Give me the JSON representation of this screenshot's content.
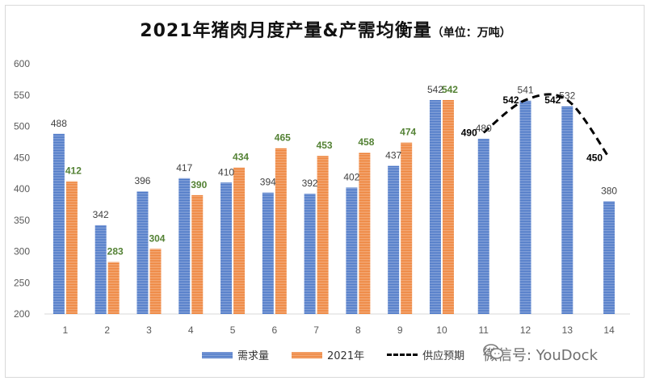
{
  "title": "2021年猪肉月度产量&产需均衡量",
  "title_unit": "（单位：万吨）",
  "legend": {
    "demand": "需求量",
    "production": "2021年",
    "forecast": "供应预期"
  },
  "watermark": "微信号: YouDock",
  "colors": {
    "demand": "#4472c4",
    "production": "#ed7d31",
    "production_label": "#548235",
    "forecast": "#000000"
  },
  "chart_data": {
    "type": "bar",
    "title": "2021年猪肉月度产量&产需均衡量",
    "categories": [
      "1",
      "2",
      "3",
      "4",
      "5",
      "6",
      "7",
      "8",
      "9",
      "10",
      "11",
      "12",
      "13",
      "14"
    ],
    "series": [
      {
        "name": "需求量",
        "type": "bar",
        "values": [
          488,
          342,
          396,
          417,
          410,
          394,
          392,
          402,
          437,
          542,
          480,
          541,
          532,
          380
        ]
      },
      {
        "name": "2021年",
        "type": "bar",
        "values": [
          412,
          283,
          304,
          390,
          434,
          465,
          453,
          458,
          474,
          542,
          null,
          null,
          null,
          null
        ]
      },
      {
        "name": "供应预期",
        "type": "line",
        "style": "dashed",
        "values": [
          null,
          null,
          null,
          null,
          null,
          null,
          null,
          null,
          null,
          null,
          490,
          542,
          542,
          450
        ]
      }
    ],
    "ylim": [
      200,
      600
    ],
    "yticks": [
      200,
      250,
      300,
      350,
      400,
      450,
      500,
      550,
      600
    ],
    "grid": false,
    "legend_position": "bottom"
  }
}
